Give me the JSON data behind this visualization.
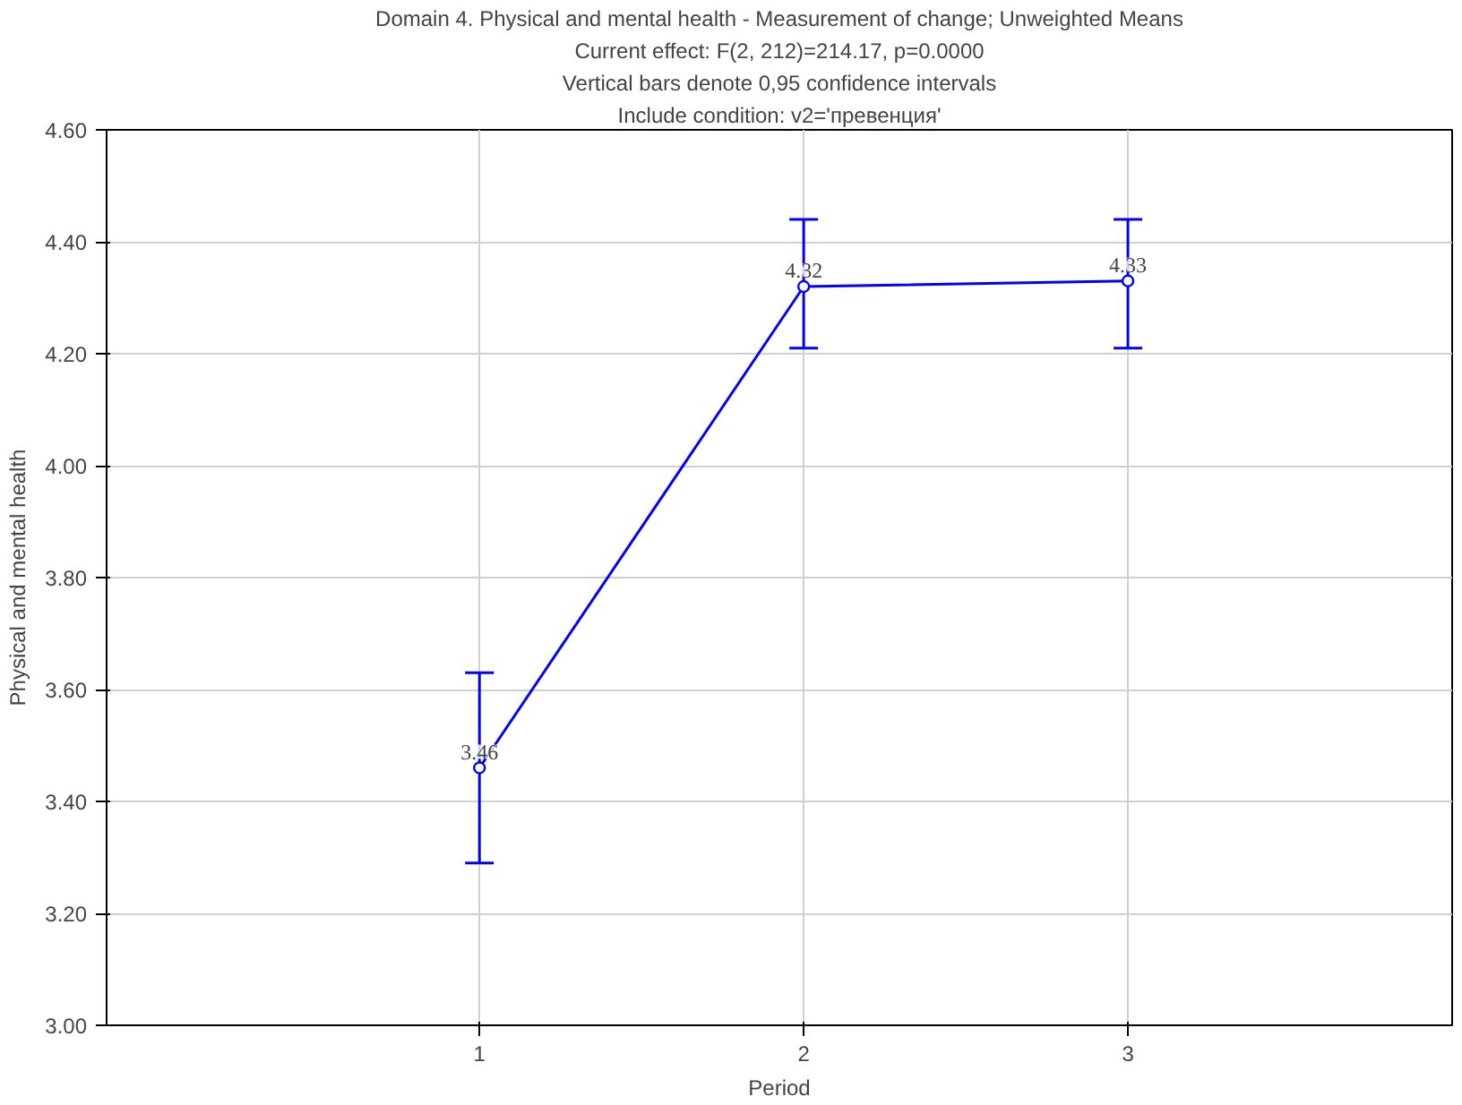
{
  "chart_data": {
    "type": "line",
    "title": "Domain 4. Physical and mental health - Measurement of change; Unweighted Means",
    "annotations": [
      "Current effect: F(2, 212)=214.17, p=0.0000",
      "Vertical bars denote 0,95 confidence intervals",
      "Include condition: v2='превенция'"
    ],
    "xlabel": "Period",
    "ylabel": "Physical and mental health",
    "x": [
      1,
      2,
      3
    ],
    "series": [
      {
        "color": "#0000ff",
        "values": [
          3.46,
          4.32,
          4.33
        ],
        "errors": [
          [
            3.29,
            3.63
          ],
          [
            4.21,
            4.44
          ],
          [
            4.21,
            4.44
          ]
        ]
      }
    ],
    "xlim": [
      -0.15,
      4
    ],
    "xticks": [
      1,
      2,
      3
    ],
    "ylim": [
      3.0,
      4.6
    ],
    "yticks": [
      {
        "value": 3.0,
        "label": "3.00"
      },
      {
        "value": 3.2,
        "label": "3.20"
      },
      {
        "value": 3.4,
        "label": "3.40"
      },
      {
        "value": 3.6,
        "label": "3.60"
      },
      {
        "value": 3.8,
        "label": "3.80"
      },
      {
        "value": 4.0,
        "label": "4.00"
      },
      {
        "value": 4.2,
        "label": "4.20"
      },
      {
        "value": 4.4,
        "label": "4.40"
      },
      {
        "value": 4.6,
        "label": "4.60"
      }
    ],
    "grid": true,
    "marker": "circle",
    "line_style": "solid",
    "data_labels": true
  }
}
